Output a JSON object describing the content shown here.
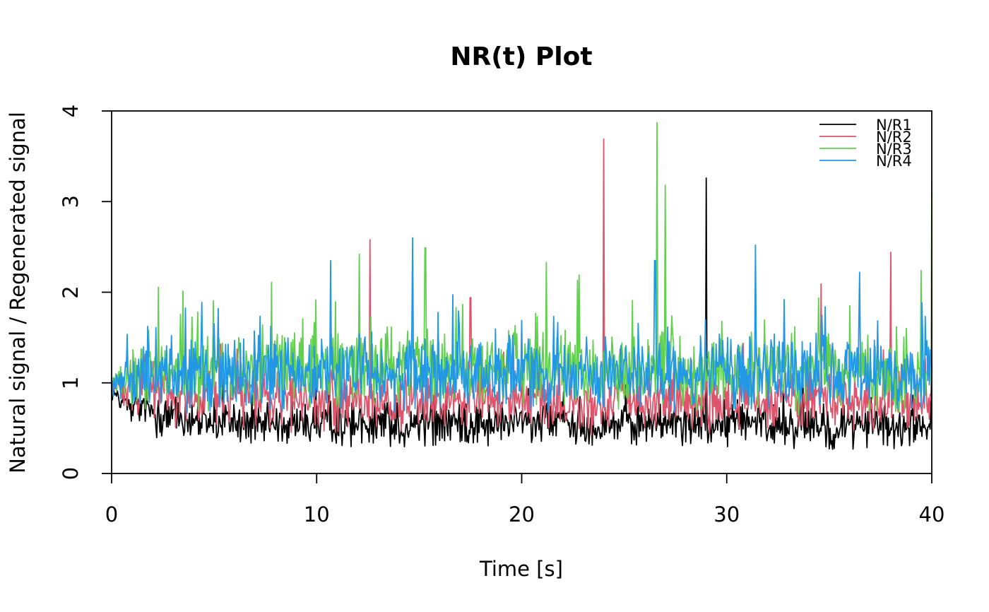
{
  "chart_data": {
    "type": "line",
    "title": "NR(t) Plot",
    "xlabel": "Time [s]",
    "ylabel": "Natural signal / Regenerated signal",
    "xlim": [
      0,
      40
    ],
    "ylim": [
      0,
      4
    ],
    "xticks": [
      0,
      10,
      20,
      30,
      40
    ],
    "yticks": [
      0,
      1,
      2,
      3,
      4
    ],
    "grid": false,
    "legend_position": "top-right",
    "sampling": {
      "t_start": 0,
      "t_end": 40,
      "dt": 0.04
    },
    "series": [
      {
        "name": "N/R1",
        "color": "#000000",
        "start_value": 0.92,
        "baseline": [
          [
            0,
            0.92
          ],
          [
            1,
            0.72
          ],
          [
            3,
            0.6
          ],
          [
            6,
            0.55
          ],
          [
            15,
            0.55
          ],
          [
            30,
            0.55
          ],
          [
            40,
            0.5
          ]
        ],
        "noise": 0.14,
        "spikes": [
          [
            29.0,
            3.26
          ],
          [
            40.0,
            1.2
          ]
        ]
      },
      {
        "name": "N/R2",
        "color": "#DF536B",
        "start_value": 0.95,
        "baseline": [
          [
            0,
            0.97
          ],
          [
            2,
            0.9
          ],
          [
            5,
            0.82
          ],
          [
            15,
            0.8
          ],
          [
            30,
            0.8
          ],
          [
            40,
            0.78
          ]
        ],
        "noise": 0.19,
        "spikes": [
          [
            12.6,
            2.58
          ],
          [
            17.5,
            1.94
          ],
          [
            24.0,
            3.69
          ],
          [
            34.6,
            2.09
          ],
          [
            38.0,
            2.44
          ]
        ]
      },
      {
        "name": "N/R3",
        "color": "#61D04F",
        "start_value": 1.0,
        "baseline": [
          [
            0,
            1.0
          ],
          [
            3,
            1.12
          ],
          [
            10,
            1.15
          ],
          [
            20,
            1.15
          ],
          [
            30,
            1.1
          ],
          [
            40,
            1.1
          ]
        ],
        "noise": 0.24,
        "spikes": [
          [
            7.8,
            2.11
          ],
          [
            12.1,
            2.42
          ],
          [
            15.3,
            2.49
          ],
          [
            21.2,
            2.33
          ],
          [
            22.8,
            2.19
          ],
          [
            26.6,
            3.87
          ],
          [
            27.0,
            3.18
          ],
          [
            39.5,
            2.24
          ],
          [
            40.0,
            3.22
          ]
        ]
      },
      {
        "name": "N/R4",
        "color": "#2297E6",
        "start_value": 0.97,
        "baseline": [
          [
            0,
            1.0
          ],
          [
            3,
            1.12
          ],
          [
            10,
            1.12
          ],
          [
            20,
            1.1
          ],
          [
            30,
            1.1
          ],
          [
            40,
            1.12
          ]
        ],
        "noise": 0.24,
        "spikes": [
          [
            5.2,
            1.82
          ],
          [
            10.7,
            2.35
          ],
          [
            14.7,
            2.6
          ],
          [
            26.5,
            2.35
          ],
          [
            31.4,
            2.52
          ],
          [
            36.5,
            2.22
          ]
        ]
      }
    ]
  }
}
